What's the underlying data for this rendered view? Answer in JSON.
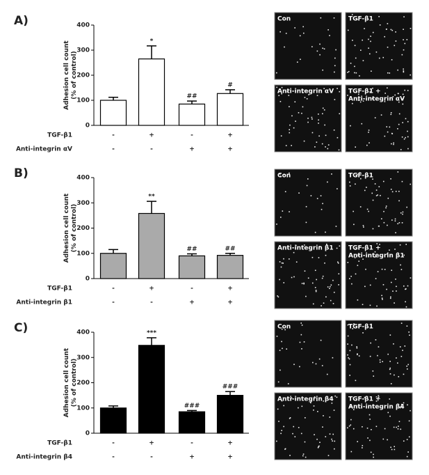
{
  "chart_data": [
    {
      "type": "bar",
      "panel": "A)",
      "ylabel": [
        "Adhesion cell count",
        "(% of control)"
      ],
      "categories": [
        null,
        null,
        null,
        null
      ],
      "values": [
        100,
        265,
        85,
        127
      ],
      "errors": [
        12,
        52,
        12,
        15
      ],
      "annotations": [
        null,
        "*",
        "##",
        "#"
      ],
      "color": "#ffffff",
      "ylim": [
        0,
        400
      ],
      "yticks": [
        0,
        100,
        200,
        300,
        400
      ],
      "conditions": [
        {
          "name": "TGF-β1",
          "marks": [
            "-",
            "+",
            "-",
            "+"
          ]
        },
        {
          "name": "Anti-integrin αV",
          "marks": [
            "-",
            "-",
            "+",
            "+"
          ]
        }
      ],
      "images": [
        [
          "Con"
        ],
        [
          "TGF-β1"
        ],
        [
          "Anti-integrin αV"
        ],
        [
          "TGF-β1 +",
          "Anti-integrin αV"
        ]
      ]
    },
    {
      "type": "bar",
      "panel": "B)",
      "ylabel": [
        "Adhesion cell count",
        "(% of control)"
      ],
      "categories": [
        null,
        null,
        null,
        null
      ],
      "values": [
        100,
        258,
        90,
        92
      ],
      "errors": [
        15,
        48,
        8,
        8
      ],
      "annotations": [
        null,
        "**",
        "##",
        "##"
      ],
      "color": "#aaaaaa",
      "ylim": [
        0,
        400
      ],
      "yticks": [
        0,
        100,
        200,
        300,
        400
      ],
      "conditions": [
        {
          "name": "TGF-β1",
          "marks": [
            "-",
            "+",
            "-",
            "+"
          ]
        },
        {
          "name": "Anti-integrin β1",
          "marks": [
            "-",
            "-",
            "+",
            "+"
          ]
        }
      ],
      "images": [
        [
          "Con"
        ],
        [
          "TGF-β1"
        ],
        [
          "Anti-integrin β1"
        ],
        [
          "TGF-β1 +",
          "Anti-integrin β1"
        ]
      ]
    },
    {
      "type": "bar",
      "panel": "C)",
      "ylabel": [
        "Adhesion cell count",
        "(% of control)"
      ],
      "categories": [
        null,
        null,
        null,
        null
      ],
      "values": [
        100,
        348,
        85,
        150
      ],
      "errors": [
        8,
        30,
        5,
        15
      ],
      "annotations": [
        null,
        "***",
        "###",
        "###"
      ],
      "color": "#000000",
      "ylim": [
        0,
        400
      ],
      "yticks": [
        0,
        100,
        200,
        300,
        400
      ],
      "conditions": [
        {
          "name": "TGF-β1",
          "marks": [
            "-",
            "+",
            "-",
            "+"
          ]
        },
        {
          "name": "Anti-integrin β4",
          "marks": [
            "-",
            "-",
            "+",
            "+"
          ]
        }
      ],
      "images": [
        [
          "Con"
        ],
        [
          "TGF-β1"
        ],
        [
          "Anti-integrin β4"
        ],
        [
          "TGF-β1 +",
          "Anti-integrin β4"
        ]
      ]
    }
  ]
}
